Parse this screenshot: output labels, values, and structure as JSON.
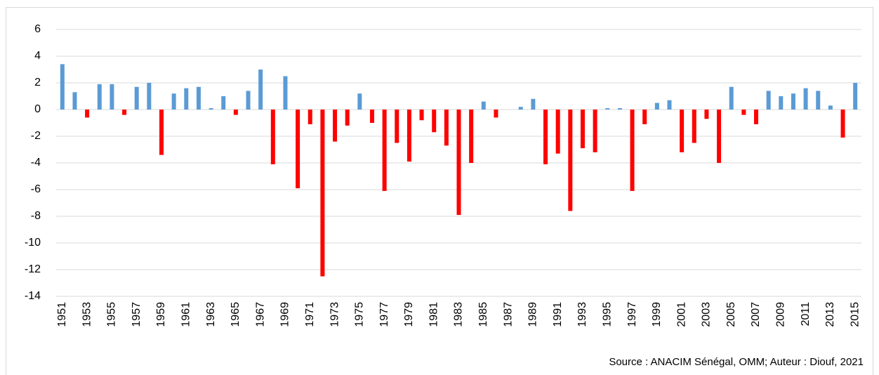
{
  "chart_data": {
    "type": "bar",
    "categories": [
      1951,
      null,
      1953,
      null,
      1955,
      null,
      1957,
      null,
      1959,
      null,
      1961,
      null,
      1963,
      null,
      1965,
      null,
      1967,
      null,
      1969,
      null,
      1971,
      null,
      1973,
      null,
      1975,
      null,
      1977,
      null,
      1979,
      null,
      1981,
      null,
      1983,
      null,
      1985,
      null,
      1987,
      null,
      1989,
      null,
      1991,
      null,
      1993,
      null,
      1995,
      null,
      1997,
      null,
      1999,
      null,
      2001,
      null,
      2003,
      null,
      2005,
      null,
      2007,
      null,
      2009,
      null,
      2011,
      null,
      2013,
      null,
      2015
    ],
    "values": [
      3.4,
      1.3,
      -0.6,
      1.9,
      1.9,
      -0.4,
      1.7,
      2.0,
      -3.4,
      1.2,
      1.6,
      1.7,
      0.1,
      1.0,
      -0.4,
      1.4,
      3.0,
      -4.1,
      2.5,
      -5.9,
      -1.1,
      -12.5,
      -2.4,
      -1.2,
      1.2,
      -1.0,
      -6.1,
      -2.5,
      -3.9,
      -0.8,
      -1.7,
      -2.7,
      -7.9,
      -4.0,
      0.6,
      -0.6,
      0,
      0.2,
      0.8,
      -4.1,
      -3.3,
      -7.6,
      -2.9,
      -3.2,
      0.1,
      0.1,
      -6.1,
      -1.1,
      0.5,
      0.7,
      -3.2,
      -2.5,
      -0.7,
      -4.0,
      1.7,
      -0.4,
      -1.1,
      1.4,
      1.0,
      1.2,
      1.6,
      1.4,
      0.3,
      -2.1,
      2.0
    ],
    "positive_color": "#5b9bd5",
    "negative_color": "#ff0000",
    "ylim": [
      -14,
      6
    ],
    "yticks": [
      -14,
      -12,
      -10,
      -8,
      -6,
      -4,
      -2,
      0,
      2,
      4,
      6
    ],
    "grid": true,
    "source": "Source : ANACIM Sénégal, OMM; Auteur : Diouf, 2021"
  }
}
